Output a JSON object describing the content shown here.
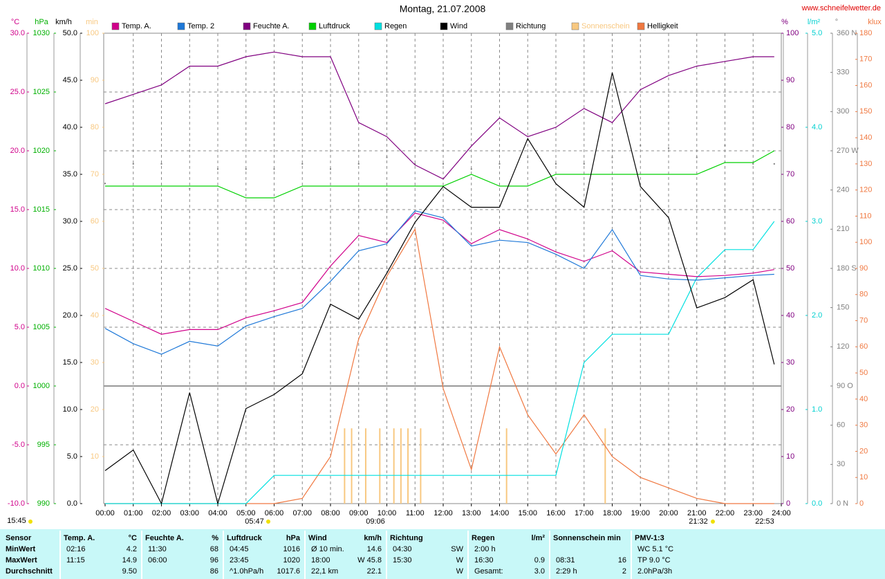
{
  "chart_data": {
    "type": "line",
    "title": "Montag, 21.07.2008",
    "source": "www.schneifelwetter.de",
    "annotations": [
      "05:47",
      "09:06",
      "21:32",
      "22:53",
      "15:45"
    ],
    "grid": true,
    "xlim": [
      0,
      24
    ],
    "xticks": [
      {
        "value": 0,
        "label": "00:00"
      },
      {
        "value": 1,
        "label": "01:00"
      },
      {
        "value": 2,
        "label": "02:00"
      },
      {
        "value": 3,
        "label": "03:00"
      },
      {
        "value": 4,
        "label": "04:00"
      },
      {
        "value": 5,
        "label": "05:00"
      },
      {
        "value": 6,
        "label": "06:00"
      },
      {
        "value": 7,
        "label": "07:00"
      },
      {
        "value": 8,
        "label": "08:00"
      },
      {
        "value": 9,
        "label": "09:00"
      },
      {
        "value": 10,
        "label": "10:00"
      },
      {
        "value": 11,
        "label": "11:00"
      },
      {
        "value": 12,
        "label": "12:00"
      },
      {
        "value": 13,
        "label": "13:00"
      },
      {
        "value": 14,
        "label": "14:00"
      },
      {
        "value": 15,
        "label": "15:00"
      },
      {
        "value": 16,
        "label": "16:00"
      },
      {
        "value": 17,
        "label": "17:00"
      },
      {
        "value": 18,
        "label": "18:00"
      },
      {
        "value": 19,
        "label": "19:00"
      },
      {
        "value": 20,
        "label": "20:00"
      },
      {
        "value": 21,
        "label": "21:00"
      },
      {
        "value": 22,
        "label": "22:00"
      },
      {
        "value": 23,
        "label": "23:00"
      },
      {
        "value": 24,
        "label": "24:00"
      }
    ],
    "axes": [
      {
        "unit": "°C",
        "color": "#d0008a",
        "lim": [
          -10,
          30
        ],
        "ticks": [
          {
            "value": 30,
            "label": "30.0"
          },
          {
            "value": 25,
            "label": "25.0"
          },
          {
            "value": 20,
            "label": "20.0"
          },
          {
            "value": 15,
            "label": "15.0"
          },
          {
            "value": 10,
            "label": "10.0"
          },
          {
            "value": 5,
            "label": "5.0"
          },
          {
            "value": 0,
            "label": "0.0"
          },
          {
            "value": -5,
            "label": "-5.0"
          },
          {
            "value": -10,
            "label": "-10.0"
          }
        ]
      },
      {
        "unit": "hPa",
        "color": "#00b000",
        "lim": [
          990,
          1030
        ],
        "ticks": [
          1030,
          1025,
          1020,
          1015,
          1010,
          1005,
          1000,
          995,
          990
        ]
      },
      {
        "unit": "km/h",
        "color": "#000000",
        "lim": [
          0,
          50
        ],
        "ticks": [
          {
            "value": 50,
            "label": "50.0"
          },
          {
            "value": 45,
            "label": "45.0"
          },
          {
            "value": 40,
            "label": "40.0"
          },
          {
            "value": 35,
            "label": "35.0"
          },
          {
            "value": 30,
            "label": "30.0"
          },
          {
            "value": 25,
            "label": "25.0"
          },
          {
            "value": 20,
            "label": "20.0"
          },
          {
            "value": 15,
            "label": "15.0"
          },
          {
            "value": 10,
            "label": "10.0"
          },
          {
            "value": 5,
            "label": "5.0"
          },
          {
            "value": 0,
            "label": "0.0"
          }
        ]
      },
      {
        "unit": "min",
        "color": "#f8c880",
        "lim": [
          0,
          100
        ],
        "ticks": [
          100,
          90,
          80,
          70,
          60,
          50,
          40,
          30,
          20,
          10
        ]
      },
      {
        "unit": "%",
        "color": "#800080",
        "lim": [
          0,
          100
        ],
        "ticks": [
          100,
          90,
          80,
          70,
          60,
          50,
          40,
          30,
          20,
          10,
          0
        ]
      },
      {
        "unit": "l/m²",
        "color": "#00d0d0",
        "lim": [
          0,
          5
        ],
        "ticks": [
          {
            "value": 5,
            "label": "5.0"
          },
          {
            "value": 4,
            "label": "4.0"
          },
          {
            "value": 3,
            "label": "3.0"
          },
          {
            "value": 2,
            "label": "2.0"
          },
          {
            "value": 1,
            "label": "1.0"
          },
          {
            "value": 0,
            "label": "0.0"
          }
        ]
      },
      {
        "unit": "°",
        "color": "#808080",
        "lim": [
          0,
          360
        ],
        "ticks": [
          {
            "value": 360,
            "label": "360 N"
          },
          330,
          300,
          {
            "value": 270,
            "label": "270 W"
          },
          240,
          210,
          {
            "value": 180,
            "label": "180 S"
          },
          150,
          120,
          {
            "value": 90,
            "label": "90 O"
          },
          60,
          30,
          {
            "value": 0,
            "label": "0 N"
          }
        ]
      },
      {
        "unit": "klux",
        "color": "#f07840",
        "lim": [
          0,
          180
        ],
        "ticks": [
          180,
          170,
          160,
          150,
          140,
          130,
          120,
          110,
          100,
          90,
          80,
          70,
          60,
          50,
          40,
          30,
          20,
          10,
          0
        ]
      }
    ],
    "x": [
      0,
      1,
      2,
      3,
      4,
      5,
      6,
      7,
      8,
      9,
      10,
      11,
      12,
      13,
      14,
      15,
      16,
      17,
      18,
      19,
      20,
      21,
      22,
      23,
      23.75
    ],
    "series": [
      {
        "name": "Temp. A.",
        "color": "#d0008a",
        "axis": 0,
        "style": "line",
        "values": [
          6.6,
          5.5,
          4.4,
          4.8,
          4.8,
          5.8,
          6.4,
          7.1,
          10.2,
          12.8,
          12.2,
          14.7,
          14.1,
          12.1,
          13.3,
          12.5,
          11.4,
          10.6,
          11.5,
          9.7,
          9.5,
          9.3,
          9.4,
          9.6,
          9.9
        ]
      },
      {
        "name": "Temp. 2",
        "color": "#1e78d8",
        "axis": 0,
        "style": "line",
        "values": [
          4.9,
          3.6,
          2.7,
          3.8,
          3.4,
          5.1,
          5.9,
          6.6,
          8.9,
          11.5,
          12.1,
          14.9,
          14.3,
          11.9,
          12.4,
          12.2,
          11.2,
          10.0,
          13.3,
          9.4,
          9.1,
          9.0,
          9.2,
          9.4,
          9.5
        ]
      },
      {
        "name": "Feuchte A.",
        "color": "#800080",
        "axis": 4,
        "style": "line",
        "values": [
          85,
          87,
          89,
          93,
          93,
          95,
          96,
          95,
          95,
          81,
          78,
          72,
          69,
          76,
          82,
          78,
          80,
          84,
          81,
          88,
          91,
          93,
          94,
          95,
          95
        ]
      },
      {
        "name": "Luftdruck",
        "color": "#00d000",
        "axis": 1,
        "style": "line",
        "values": [
          1017,
          1017,
          1017,
          1017,
          1017,
          1016,
          1016,
          1017,
          1017,
          1017,
          1017,
          1017,
          1017,
          1018,
          1017,
          1017,
          1018,
          1018,
          1018,
          1018,
          1018,
          1018,
          1019,
          1019,
          1020
        ]
      },
      {
        "name": "Regen",
        "color": "#00e0e0",
        "axis": 5,
        "style": "line",
        "values": [
          0,
          0,
          0,
          0,
          0,
          0,
          0.3,
          0.3,
          0.3,
          0.3,
          0.3,
          0.3,
          0.3,
          0.3,
          0.3,
          0.3,
          0.3,
          1.5,
          1.8,
          1.8,
          1.8,
          2.4,
          2.7,
          2.7,
          3.0
        ]
      },
      {
        "name": "Wind",
        "color": "#000000",
        "axis": 2,
        "style": "line",
        "values": [
          3.5,
          5.7,
          0,
          11.8,
          0,
          10.1,
          11.6,
          13.8,
          21.2,
          19.6,
          24.5,
          29.9,
          33.7,
          31.5,
          31.5,
          38.8,
          34.0,
          31.5,
          45.8,
          33.7,
          30.4,
          20.8,
          21.9,
          23.8,
          14.8
        ]
      },
      {
        "name": "Richtung",
        "color": "#808080",
        "axis": 6,
        "style": "dots",
        "values": [
          245,
          260,
          260,
          241,
          256,
          256,
          256,
          260,
          256,
          260,
          265,
          260,
          260,
          256,
          260,
          265,
          260,
          260,
          265,
          274,
          272,
          265,
          274,
          260,
          260
        ]
      },
      {
        "name": "Sonnenschein",
        "color": "#f8c880",
        "axis": 3,
        "style": "bars",
        "x": [
          8.5,
          8.75,
          9.25,
          9.75,
          10.25,
          10.5,
          10.75,
          11.2,
          14.25,
          17.75
        ],
        "values": [
          16,
          16,
          16,
          16,
          16,
          16,
          16,
          16,
          16,
          16
        ]
      },
      {
        "name": "Helligkeit",
        "color": "#f07840",
        "axis": 7,
        "style": "line",
        "values": [
          0,
          0,
          0,
          0,
          0,
          0,
          0,
          2,
          18,
          63,
          87,
          105,
          44,
          13,
          60,
          34,
          19,
          34,
          18,
          10,
          6,
          2,
          0,
          0,
          0
        ]
      }
    ]
  },
  "table": {
    "header": "Sensor",
    "row_labels": [
      "MinWert",
      "MaxWert",
      "Durchschnitt"
    ],
    "groups": [
      {
        "name": "Temp. A.",
        "unit": "°C",
        "cells": [
          {
            "left": "02:16",
            "right": "4.2"
          },
          {
            "left": "11:15",
            "right": "14.9"
          },
          {
            "right": "9.50"
          }
        ]
      },
      {
        "name": "Feuchte A.",
        "unit": "%",
        "cells": [
          {
            "left": "11:30",
            "right": "68"
          },
          {
            "left": "06:00",
            "right": "96"
          },
          {
            "right": "86"
          }
        ]
      },
      {
        "name": "Luftdruck",
        "unit": "hPa",
        "cells": [
          {
            "left": "04:45",
            "right": "1016"
          },
          {
            "left": "23:45",
            "right": "1020"
          },
          {
            "left": "^1.0hPa/h",
            "right": "1017.6"
          }
        ]
      },
      {
        "name": "Wind",
        "unit": "km/h",
        "cells": [
          {
            "left": "Ø 10 min.",
            "right": "14.6"
          },
          {
            "left": "18:00",
            "right": "W 45.8"
          },
          {
            "left": "22,1 km",
            "right": "22.1"
          }
        ]
      },
      {
        "name": "Richtung",
        "cells": [
          {
            "left": "04:30",
            "right": "SW"
          },
          {
            "left": "15:30",
            "right": "W"
          },
          {
            "right": "W"
          }
        ]
      },
      {
        "name": "Regen",
        "unit": "l/m²",
        "cells": [
          {
            "left": "2:00 h"
          },
          {
            "left": "16:30",
            "right": "0.9"
          },
          {
            "left": "Gesamt:",
            "right": "3.0"
          }
        ]
      },
      {
        "name": "Sonnenschein min",
        "cells": [
          {},
          {
            "left": "08:31",
            "right": "16"
          },
          {
            "left": "2:29 h",
            "right": "2"
          }
        ]
      },
      {
        "name": "PMV-1:3",
        "cells": [
          {
            "left": "WC 5.1 °C"
          },
          {
            "left": "TP 9.0 °C"
          },
          {
            "left": "2.0hPa/3h"
          }
        ]
      }
    ]
  }
}
